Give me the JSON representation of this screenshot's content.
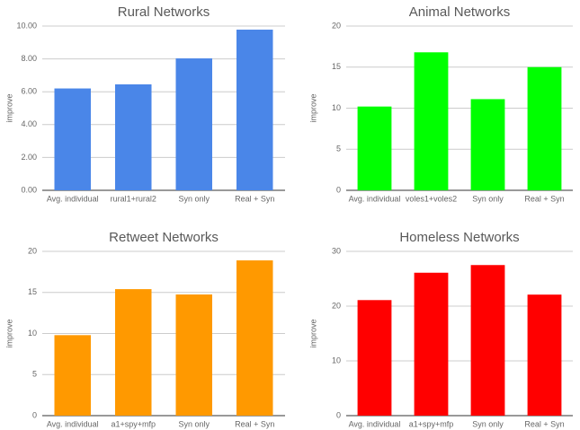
{
  "chart_data": [
    {
      "type": "bar",
      "title": "Rural Networks",
      "y_label": "improve",
      "categories": [
        "Avg. individual",
        "rural1+rural2",
        "Syn only",
        "Real + Syn"
      ],
      "values": [
        6.2,
        6.45,
        8.03,
        9.78
      ],
      "color": "#4a86e8",
      "ylim": [
        0,
        10
      ],
      "yticks": [
        {
          "value": 0,
          "label": "0.00"
        },
        {
          "value": 2,
          "label": "2.00"
        },
        {
          "value": 4,
          "label": "4.00"
        },
        {
          "value": 6,
          "label": "6.00"
        },
        {
          "value": 8,
          "label": "8.00"
        },
        {
          "value": 10,
          "label": "10.00"
        }
      ],
      "grid": true
    },
    {
      "type": "bar",
      "title": "Animal Networks",
      "y_label": "improve",
      "categories": [
        "Avg. individual",
        "voles1+voles2",
        "Syn only",
        "Real + Syn"
      ],
      "values": [
        10.2,
        16.8,
        11.1,
        15.0
      ],
      "color": "#00ff00",
      "ylim": [
        0,
        20
      ],
      "yticks": [
        0,
        5,
        10,
        15,
        20
      ],
      "grid": true
    },
    {
      "type": "bar",
      "title": "Retweet Networks",
      "y_label": "improve",
      "categories": [
        "Avg. individual",
        "a1+spy+mfp",
        "Syn only",
        "Real + Syn"
      ],
      "values": [
        9.8,
        15.4,
        14.75,
        18.9
      ],
      "color": "#ff9900",
      "ylim": [
        0,
        20
      ],
      "yticks": [
        0,
        5,
        10,
        15,
        20
      ],
      "grid": true
    },
    {
      "type": "bar",
      "title": "Homeless Networks",
      "y_label": "improve",
      "categories": [
        "Avg. individual",
        "a1+spy+mfp",
        "Syn only",
        "Real + Syn"
      ],
      "values": [
        21.1,
        26.1,
        27.5,
        22.1
      ],
      "color": "#ff0000",
      "ylim": [
        0,
        30
      ],
      "yticks": [
        0,
        10,
        20,
        30
      ],
      "grid": true
    }
  ]
}
